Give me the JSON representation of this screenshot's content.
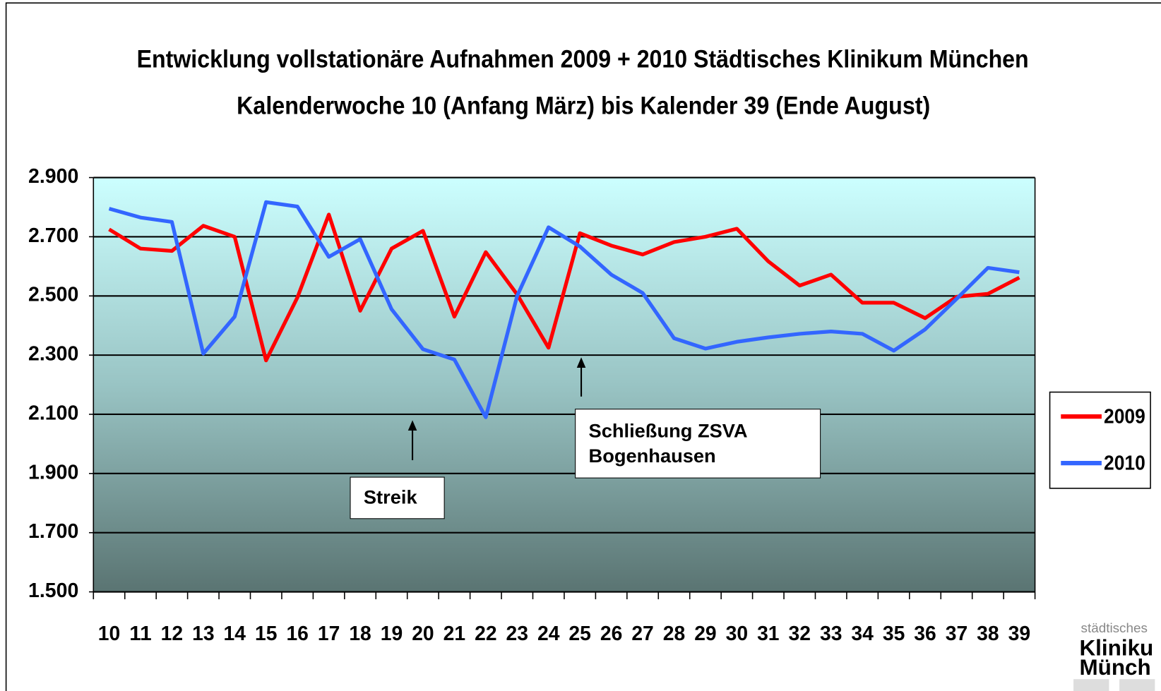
{
  "chart_data": {
    "type": "line",
    "title": [
      "Entwicklung vollstationäre Aufnahmen 2009 + 2010 Städtisches Klinikum München",
      "Kalenderwoche 10 (Anfang März) bis Kalender 39 (Ende August)"
    ],
    "categories": [
      "10",
      "11",
      "12",
      "13",
      "14",
      "15",
      "16",
      "17",
      "18",
      "19",
      "20",
      "21",
      "22",
      "23",
      "24",
      "25",
      "26",
      "27",
      "28",
      "29",
      "30",
      "31",
      "32",
      "33",
      "34",
      "35",
      "36",
      "37",
      "38",
      "39"
    ],
    "series": [
      {
        "name": "2009",
        "color": "#ff0000",
        "values": [
          2725,
          2660,
          2652,
          2737,
          2700,
          2282,
          2495,
          2775,
          2450,
          2660,
          2720,
          2430,
          2648,
          2505,
          2325,
          2712,
          2670,
          2640,
          2682,
          2700,
          2727,
          2617,
          2535,
          2572,
          2477,
          2477,
          2425,
          2497,
          2507,
          2562
        ]
      },
      {
        "name": "2010",
        "color": "#3366ff",
        "values": [
          2795,
          2765,
          2750,
          2305,
          2430,
          2817,
          2802,
          2632,
          2692,
          2455,
          2320,
          2285,
          2090,
          2500,
          2732,
          2667,
          2572,
          2510,
          2357,
          2322,
          2345,
          2360,
          2372,
          2380,
          2372,
          2315,
          2387,
          2490,
          2595,
          2580
        ]
      }
    ],
    "ylim": [
      1500,
      2900
    ],
    "yticks": [
      {
        "value": 1500,
        "label": "1.500"
      },
      {
        "value": 1700,
        "label": "1.700"
      },
      {
        "value": 1900,
        "label": "1.900"
      },
      {
        "value": 2100,
        "label": "2.100"
      },
      {
        "value": 2300,
        "label": "2.300"
      },
      {
        "value": 2500,
        "label": "2.500"
      },
      {
        "value": 2700,
        "label": "2.700"
      },
      {
        "value": 2900,
        "label": "2.900"
      }
    ],
    "grid": true,
    "legend": "right",
    "annotations": [
      {
        "lines": [
          "Streik"
        ]
      },
      {
        "lines": [
          "Schließung ZSVA",
          "Bogenhausen"
        ]
      }
    ],
    "logo": [
      "städtisches",
      "Kliniku",
      "Münch"
    ]
  }
}
